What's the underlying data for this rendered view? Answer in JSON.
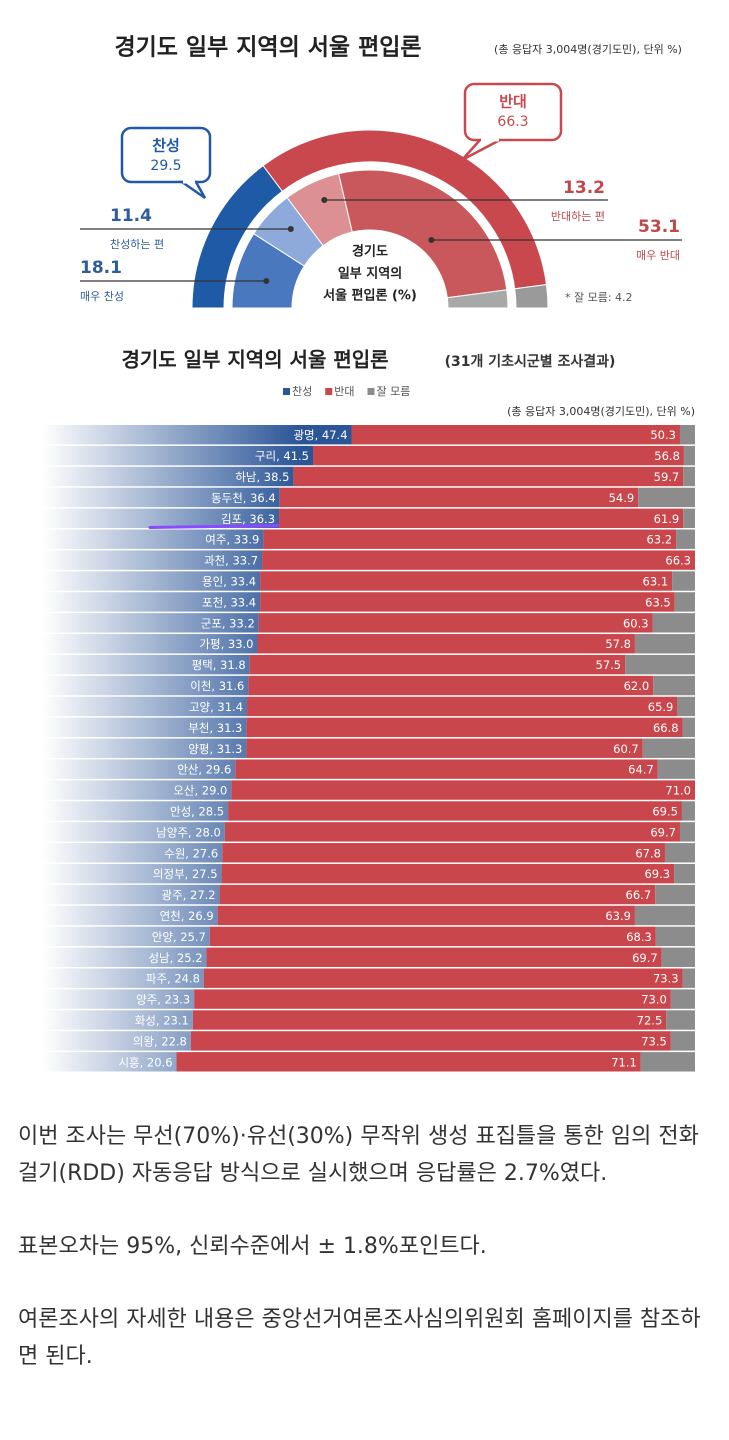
{
  "chart_data": [
    {
      "type": "semi-donut",
      "title": "경기도 일부 지역의 서울 편입론",
      "subtitle": "(총 응답자 3,004명(경기도민), 단위 %)",
      "center_label": [
        "경기도",
        "일부 지역의",
        "서울 편입론 (%)"
      ],
      "note": "* 잘 모름: 4.2",
      "outer": {
        "categories": [
          "찬성",
          "반대",
          null
        ],
        "values": [
          29.5,
          66.3,
          4.2
        ],
        "colors": [
          "#1f5aa6",
          "#c9484e",
          "#9a9a9a"
        ]
      },
      "inner": {
        "categories": [
          "매우 찬성",
          "찬성하는 편",
          "반대하는 편",
          "매우 반대",
          null
        ],
        "values": [
          18.1,
          11.4,
          13.2,
          53.1,
          4.2
        ],
        "colors": [
          "#4a78bf",
          "#8eaadb",
          "#dd9094",
          "#c9585c",
          "#a8a8a8"
        ]
      }
    },
    {
      "type": "stacked-barh",
      "title": "경기도 일부 지역의 서울 편입론",
      "subtitle": "(31개 기초시군별 조사결과)",
      "note": "(총 응답자 3,004명(경기도민), 단위 %)",
      "xlim": [
        0,
        100
      ],
      "series": [
        {
          "name": "찬성",
          "color": "#2b5597",
          "values": [
            47.4,
            41.5,
            38.5,
            36.4,
            36.3,
            33.9,
            33.7,
            33.4,
            33.4,
            33.2,
            33.0,
            31.8,
            31.6,
            31.4,
            31.3,
            31.3,
            29.6,
            29.0,
            28.5,
            28.0,
            27.6,
            27.5,
            27.2,
            26.9,
            25.7,
            25.2,
            24.8,
            23.3,
            23.1,
            22.8,
            20.6
          ],
          "value_labels": [
            "광명, 47.4",
            "구리, 41.5",
            "하남, 38.5",
            "동두천, 36.4",
            "김포, 36.3",
            "여주, 33.9",
            "과천, 33.7",
            "용인, 33.4",
            "포천, 33.4",
            "군포, 33.2",
            "가평, 33.0",
            "평택, 31.8",
            "이천, 31.6",
            "고양, 31.4",
            "부천, 31.3",
            "양평, 31.3",
            "안산, 29.6",
            "오산, 29.0",
            "안성, 28.5",
            "남양주, 28.0",
            "수원, 27.6",
            "의정부, 27.5",
            "광주, 27.2",
            "연천, 26.9",
            "안양, 25.7",
            "성남, 25.2",
            "파주, 24.8",
            "양주, 23.3",
            "화성, 23.1",
            "의왕, 22.8",
            "시흥, 20.6"
          ]
        },
        {
          "name": "반대",
          "color": "#c9474c",
          "values": [
            50.3,
            56.8,
            59.7,
            54.9,
            61.9,
            63.2,
            66.3,
            63.1,
            63.5,
            60.3,
            57.8,
            57.5,
            62.0,
            65.9,
            66.8,
            60.7,
            64.7,
            71.0,
            69.5,
            69.7,
            67.8,
            69.3,
            66.7,
            63.9,
            68.3,
            69.7,
            73.3,
            73.0,
            72.5,
            73.5,
            71.1
          ],
          "value_labels": [
            "50.3",
            "56.8",
            "59.7",
            "54.9",
            "61.9",
            "63.2",
            "66.3",
            "63.1",
            "63.5",
            "60.3",
            "57.8",
            "57.5",
            "62.0",
            "65.9",
            "66.8",
            "60.7",
            "64.7",
            "71.0",
            "69.5",
            "69.7",
            "67.8",
            "69.3",
            "66.7",
            "63.9",
            "68.3",
            "69.7",
            "73.3",
            "73.0",
            "72.5",
            "73.5",
            "71.1"
          ]
        },
        {
          "name": "잘 모름",
          "color": "#8c8c8c",
          "values": [
            2.3,
            1.7,
            1.8,
            8.7,
            1.8,
            2.9,
            0,
            3.5,
            3.1,
            6.5,
            9.2,
            10.7,
            6.4,
            2.7,
            1.9,
            8.0,
            5.7,
            0,
            2.0,
            2.3,
            4.6,
            3.2,
            6.1,
            9.2,
            6.0,
            5.1,
            1.9,
            3.7,
            4.4,
            3.7,
            8.3
          ]
        }
      ]
    }
  ],
  "article": {
    "paragraphs": [
      "이번 조사는 무선(70%)·유선(30%) 무작위 생성 표집틀을 통한 임의 전화걸기(RDD) 자동응답 방식으로 실시했으며 응답률은 2.7%였다.",
      "표본오차는 95%, 신뢰수준에서 ± 1.8%포인트다.",
      "여론조사의 자세한 내용은 중앙선거여론조사심의위원회 홈페이지를 참조하면 된다."
    ]
  }
}
